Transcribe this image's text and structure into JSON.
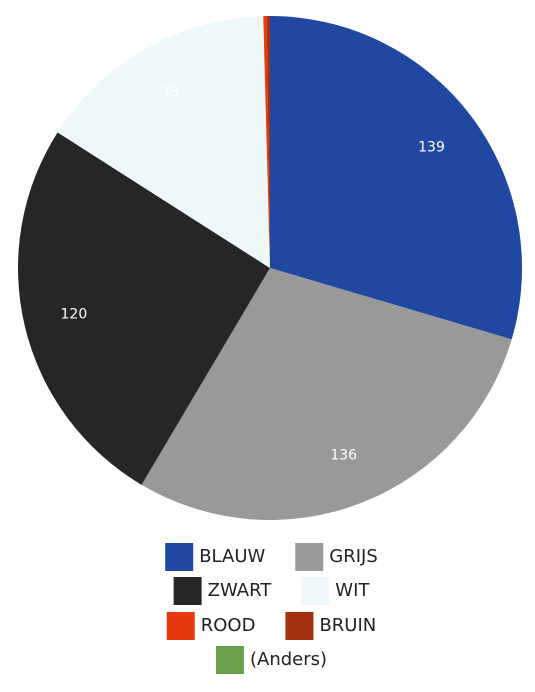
{
  "chart_data": {
    "type": "pie",
    "categories": [
      "BLAUW",
      "GRIJS",
      "ZWART",
      "WIT",
      "ROOD",
      "BRUIN",
      "(Anders)"
    ],
    "values": [
      139,
      136,
      120,
      73,
      1,
      1,
      0
    ],
    "colors": [
      "#2148a0",
      "#999999",
      "#262626",
      "#eef7fa",
      "#e8380d",
      "#a3300e",
      "#6aa04a"
    ],
    "legend": "bottom"
  }
}
